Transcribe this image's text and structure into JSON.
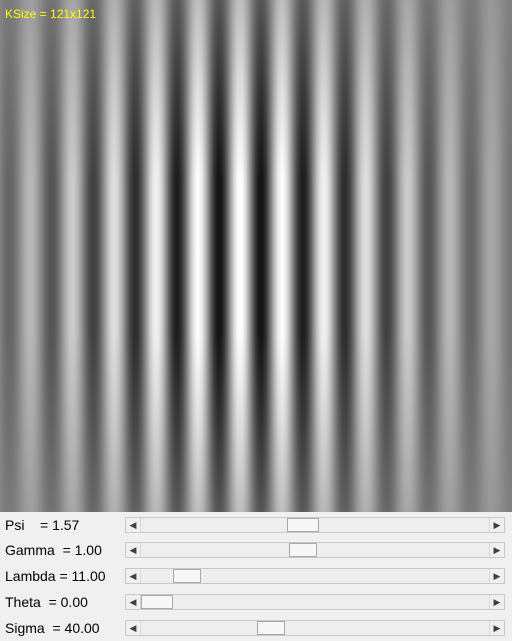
{
  "image": {
    "ksize_label": "KSize = 121x121",
    "label_color": "#ffff00"
  },
  "params": [
    {
      "id": "psi",
      "label": "Psi    = 1.57",
      "position": 0.46,
      "thumb_fraction": 0.09
    },
    {
      "id": "gamma",
      "label": "Gamma  = 1.00",
      "position": 0.46,
      "thumb_fraction": 0.08
    },
    {
      "id": "lambda",
      "label": "Lambda = 11.00",
      "position": 0.1,
      "thumb_fraction": 0.08
    },
    {
      "id": "theta",
      "label": "Theta  = 0.00",
      "position": 0.0,
      "thumb_fraction": 0.09
    },
    {
      "id": "sigma",
      "label": "Sigma  = 40.00",
      "position": 0.36,
      "thumb_fraction": 0.08
    }
  ]
}
